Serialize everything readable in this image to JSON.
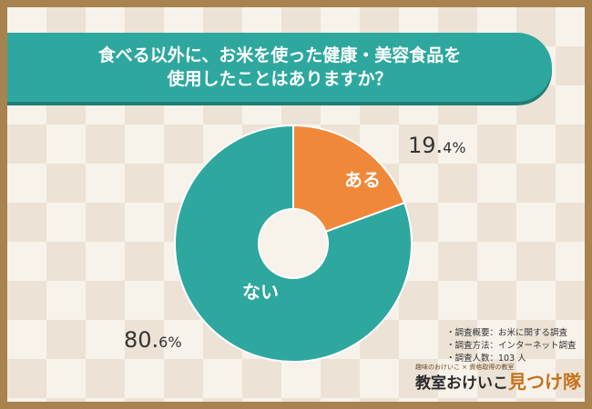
{
  "title": {
    "line1": "食べる以外に、お米を使った健康・美容食品を",
    "line2": "使用したことはありますか？"
  },
  "chart_data": {
    "type": "pie",
    "donut": true,
    "title": "食べる以外に、お米を使った健康・美容食品を使用したことはありますか？",
    "slices": [
      {
        "label": "ある",
        "value": 19.4,
        "value_label_main": "19.",
        "value_label_sub": "4%",
        "color": "#f0883a"
      },
      {
        "label": "ない",
        "value": 80.6,
        "value_label_main": "80.",
        "value_label_sub": "6%",
        "color": "#2ea89e"
      }
    ],
    "start_angle_deg": 0,
    "direction": "clockwise"
  },
  "notes": [
    "・調査概要：お米に関する調査",
    "・調査方法：インターネット調査",
    "・調査人数：103 人"
  ],
  "logo": {
    "tagline": "趣味のおけいこ × 資格取得の教室",
    "name_main": "教室おけいこ",
    "name_accent": "見つけ隊"
  }
}
